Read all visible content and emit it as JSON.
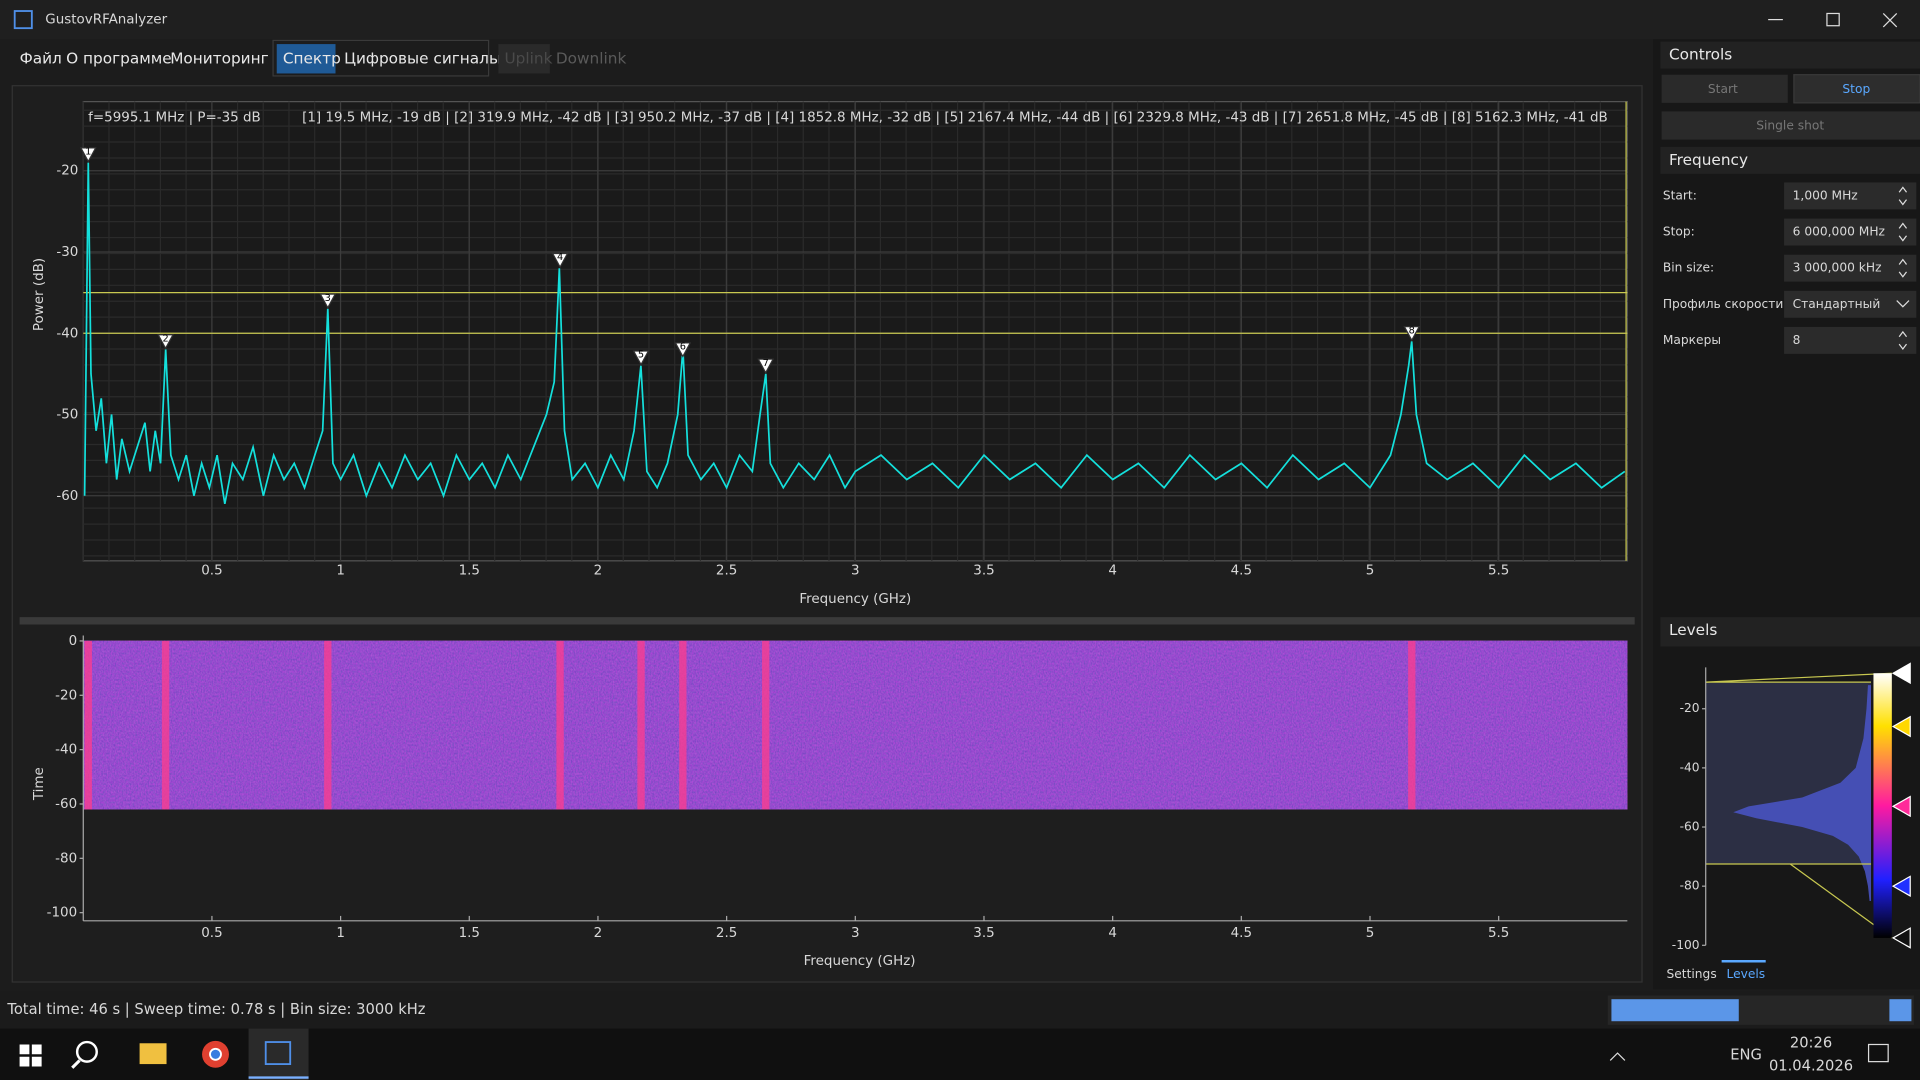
{
  "window": {
    "title": "GustovRFAnalyzer"
  },
  "menu": [
    "Файл",
    "О программе",
    "Мониторинг"
  ],
  "tabs": [
    "Спектр",
    "Цифровые сигналы"
  ],
  "subtabs": [
    "Uplink",
    "Downlink"
  ],
  "spectrum": {
    "type": "line",
    "cursor_readout": "f=5995.1 MHz | P=-35 dB",
    "markers_readout": "[1] 19.5 MHz, -19 dB | [2] 319.9 MHz, -42 dB | [3] 950.2 MHz, -37 dB | [4] 1852.8 MHz, -32 dB | [5] 2167.4 MHz, -44 dB | [6] 2329.8 MHz, -43 dB | [7] 2651.8 MHz, -45 dB | [8] 5162.3 MHz, -41 dB",
    "xlabel": "Frequency (GHz)",
    "ylabel": "Power (dB)",
    "xlim": [
      0,
      6
    ],
    "ylim": [
      -68,
      -11.5
    ],
    "xticks": [
      0.5,
      1,
      1.5,
      2,
      2.5,
      3,
      3.5,
      4,
      4.5,
      5,
      5.5
    ],
    "yticks": [
      -20,
      -30,
      -40,
      -50,
      -60
    ],
    "grid": true,
    "color": "#14e0dc",
    "x": [
      0.005,
      0.0195,
      0.03,
      0.05,
      0.07,
      0.09,
      0.11,
      0.13,
      0.15,
      0.18,
      0.2,
      0.24,
      0.26,
      0.28,
      0.3,
      0.32,
      0.34,
      0.37,
      0.4,
      0.43,
      0.46,
      0.49,
      0.52,
      0.55,
      0.58,
      0.62,
      0.66,
      0.7,
      0.74,
      0.78,
      0.82,
      0.86,
      0.9,
      0.93,
      0.95,
      0.97,
      1.0,
      1.05,
      1.1,
      1.15,
      1.2,
      1.25,
      1.3,
      1.35,
      1.4,
      1.45,
      1.5,
      1.55,
      1.6,
      1.65,
      1.7,
      1.75,
      1.8,
      1.83,
      1.85,
      1.87,
      1.9,
      1.95,
      2.0,
      2.05,
      2.1,
      2.14,
      2.167,
      2.19,
      2.23,
      2.27,
      2.31,
      2.33,
      2.35,
      2.4,
      2.45,
      2.5,
      2.55,
      2.6,
      2.63,
      2.652,
      2.67,
      2.72,
      2.78,
      2.84,
      2.9,
      2.96,
      3.0,
      3.1,
      3.2,
      3.3,
      3.4,
      3.5,
      3.6,
      3.7,
      3.8,
      3.9,
      4.0,
      4.1,
      4.2,
      4.3,
      4.4,
      4.5,
      4.6,
      4.7,
      4.8,
      4.9,
      5.0,
      5.08,
      5.12,
      5.15,
      5.162,
      5.18,
      5.22,
      5.3,
      5.4,
      5.5,
      5.6,
      5.7,
      5.8,
      5.9,
      5.99
    ],
    "values": [
      -60,
      -19,
      -45,
      -52,
      -48,
      -56,
      -50,
      -58,
      -53,
      -57,
      -55,
      -51,
      -57,
      -52,
      -56,
      -42,
      -55,
      -58,
      -55,
      -60,
      -56,
      -59,
      -55,
      -61,
      -56,
      -58,
      -54,
      -60,
      -55,
      -58,
      -56,
      -59,
      -55,
      -52,
      -37,
      -56,
      -58,
      -55,
      -60,
      -56,
      -59,
      -55,
      -58,
      -56,
      -60,
      -55,
      -58,
      -56,
      -59,
      -55,
      -58,
      -54,
      -50,
      -46,
      -32,
      -52,
      -58,
      -56,
      -59,
      -55,
      -58,
      -52,
      -44,
      -57,
      -59,
      -56,
      -50,
      -42,
      -55,
      -58,
      -56,
      -59,
      -55,
      -57,
      -50,
      -45,
      -56,
      -59,
      -56,
      -58,
      -55,
      -59,
      -57,
      -55,
      -58,
      -56,
      -59,
      -55,
      -58,
      -56,
      -59,
      -55,
      -58,
      -56,
      -59,
      -55,
      -58,
      -56,
      -59,
      -55,
      -58,
      -56,
      -59,
      -55,
      -50,
      -44,
      -41,
      -50,
      -56,
      -58,
      -56,
      -59,
      -55,
      -58,
      -56,
      -59,
      -57
    ],
    "markers": [
      {
        "label": "1",
        "x": 0.0195,
        "value": -19
      },
      {
        "label": "2",
        "x": 0.3199,
        "value": -42
      },
      {
        "label": "3",
        "x": 0.9502,
        "value": -37
      },
      {
        "label": "4",
        "x": 1.8528,
        "value": -32
      },
      {
        "label": "5",
        "x": 2.1674,
        "value": -44
      },
      {
        "label": "6",
        "x": 2.3298,
        "value": -43
      },
      {
        "label": "7",
        "x": 2.6518,
        "value": -45
      },
      {
        "label": "8",
        "x": 5.1623,
        "value": -41
      }
    ],
    "level_lines": [
      -35,
      -40
    ],
    "cursor_x": 5.9951
  },
  "waterfall": {
    "type": "heatmap",
    "xlabel": "Frequency (GHz)",
    "ylabel": "Time",
    "xlim": [
      0,
      6
    ],
    "ylim": [
      -103,
      2
    ],
    "xticks": [
      0.5,
      1,
      1.5,
      2,
      2.5,
      3,
      3.5,
      4,
      4.5,
      5,
      5.5
    ],
    "yticks": [
      0,
      -20,
      -40,
      -60,
      -80,
      -100
    ],
    "time_span": [
      -62,
      0
    ]
  },
  "controls": {
    "title": "Controls",
    "start": "Start",
    "stop": "Stop",
    "single_shot": "Single shot"
  },
  "frequency": {
    "title": "Frequency",
    "fields": [
      {
        "label": "Start:",
        "value": "1,000 MHz"
      },
      {
        "label": "Stop:",
        "value": "6 000,000 MHz"
      },
      {
        "label": "Bin size:",
        "value": "3 000,000 kHz"
      },
      {
        "label": "Профиль скорости",
        "value": "Стандартный"
      },
      {
        "label": "Маркеры",
        "value": "8"
      }
    ]
  },
  "levels": {
    "title": "Levels",
    "ylim": [
      -100,
      -6
    ],
    "yticks": [
      -20,
      -40,
      -60,
      -80,
      -100
    ],
    "range": [
      -72.5,
      -11
    ],
    "handles": [
      {
        "value": -8,
        "color": "#ffffff"
      },
      {
        "value": -26,
        "color": "#ffd800"
      },
      {
        "value": -53,
        "color": "#ff2a9a"
      },
      {
        "value": -80,
        "color": "#2030ff"
      },
      {
        "value": -97.5,
        "color": "#111111"
      }
    ],
    "histogram": {
      "xlim": [
        0,
        100
      ],
      "y": [
        -12,
        -20,
        -30,
        -40,
        -45,
        -50,
        -53,
        -55,
        -57,
        -60,
        -63,
        -66,
        -70,
        -75,
        -80,
        -85
      ],
      "values": [
        2,
        3,
        5,
        10,
        20,
        45,
        80,
        90,
        75,
        45,
        25,
        15,
        8,
        4,
        2,
        1
      ]
    },
    "tabs": [
      "Settings",
      "Levels"
    ]
  },
  "status": "Total time: 46 s | Sweep time: 0.78 s | Bin size: 3000 kHz",
  "taskbar": {
    "language": "ENG",
    "time": "20:26",
    "date": "01.04.2026"
  }
}
